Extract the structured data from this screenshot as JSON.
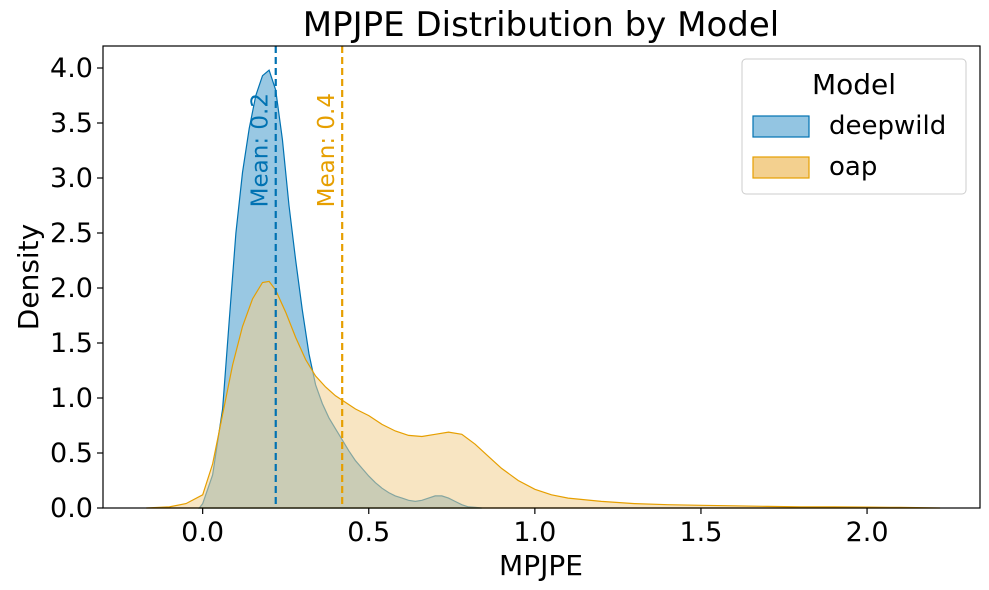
{
  "chart_data": {
    "type": "area",
    "title": "MPJPE Distribution by Model",
    "xlabel": "MPJPE",
    "ylabel": "Density",
    "xlim": [
      -0.3,
      2.34
    ],
    "ylim": [
      0,
      4.2
    ],
    "xticks": [
      0.0,
      0.5,
      1.0,
      1.5,
      2.0
    ],
    "xtick_labels": [
      "0.0",
      "0.5",
      "1.0",
      "1.5",
      "2.0"
    ],
    "yticks": [
      0.0,
      0.5,
      1.0,
      1.5,
      2.0,
      2.5,
      3.0,
      3.5,
      4.0
    ],
    "ytick_labels": [
      "0.0",
      "0.5",
      "1.0",
      "1.5",
      "2.0",
      "2.5",
      "3.0",
      "3.5",
      "4.0"
    ],
    "grid": false,
    "legend": {
      "title": "Model",
      "position": "top-right"
    },
    "series": [
      {
        "name": "deepwild",
        "color": "#0072b2",
        "fill": "#93c5e2",
        "mean": 0.22,
        "mean_label": "Mean: 0.2",
        "x": [
          -0.01,
          0.0,
          0.03,
          0.06,
          0.08,
          0.1,
          0.12,
          0.14,
          0.16,
          0.18,
          0.2,
          0.22,
          0.24,
          0.26,
          0.28,
          0.3,
          0.32,
          0.34,
          0.36,
          0.38,
          0.4,
          0.42,
          0.44,
          0.46,
          0.48,
          0.5,
          0.52,
          0.54,
          0.56,
          0.58,
          0.6,
          0.62,
          0.64,
          0.66,
          0.68,
          0.7,
          0.72,
          0.74,
          0.76,
          0.78,
          0.8,
          0.82,
          0.84
        ],
        "y": [
          0.0,
          0.04,
          0.3,
          0.9,
          1.7,
          2.5,
          3.05,
          3.45,
          3.75,
          3.93,
          3.98,
          3.8,
          3.35,
          2.75,
          2.25,
          1.8,
          1.4,
          1.12,
          0.95,
          0.82,
          0.72,
          0.62,
          0.52,
          0.43,
          0.36,
          0.29,
          0.23,
          0.18,
          0.14,
          0.11,
          0.09,
          0.07,
          0.06,
          0.07,
          0.09,
          0.11,
          0.11,
          0.09,
          0.06,
          0.03,
          0.01,
          0.005,
          0.0
        ]
      },
      {
        "name": "oap",
        "color": "#e69f00",
        "fill": "#f3d08f",
        "mean": 0.42,
        "mean_label": "Mean: 0.4",
        "x": [
          -0.17,
          -0.1,
          -0.05,
          0.0,
          0.03,
          0.06,
          0.09,
          0.12,
          0.15,
          0.18,
          0.2,
          0.22,
          0.25,
          0.28,
          0.31,
          0.34,
          0.37,
          0.4,
          0.43,
          0.46,
          0.5,
          0.54,
          0.58,
          0.62,
          0.66,
          0.7,
          0.74,
          0.78,
          0.82,
          0.86,
          0.9,
          0.95,
          1.0,
          1.05,
          1.1,
          1.2,
          1.3,
          1.4,
          1.5,
          1.6,
          1.7,
          1.8,
          1.9,
          2.0,
          2.1,
          2.22
        ],
        "y": [
          0.0,
          0.01,
          0.04,
          0.12,
          0.4,
          0.85,
          1.3,
          1.65,
          1.9,
          2.05,
          2.06,
          1.98,
          1.78,
          1.55,
          1.35,
          1.2,
          1.1,
          1.02,
          0.96,
          0.9,
          0.84,
          0.76,
          0.7,
          0.66,
          0.65,
          0.67,
          0.69,
          0.67,
          0.58,
          0.47,
          0.36,
          0.25,
          0.17,
          0.12,
          0.09,
          0.06,
          0.04,
          0.03,
          0.025,
          0.02,
          0.015,
          0.01,
          0.01,
          0.008,
          0.005,
          0.0
        ]
      }
    ]
  }
}
